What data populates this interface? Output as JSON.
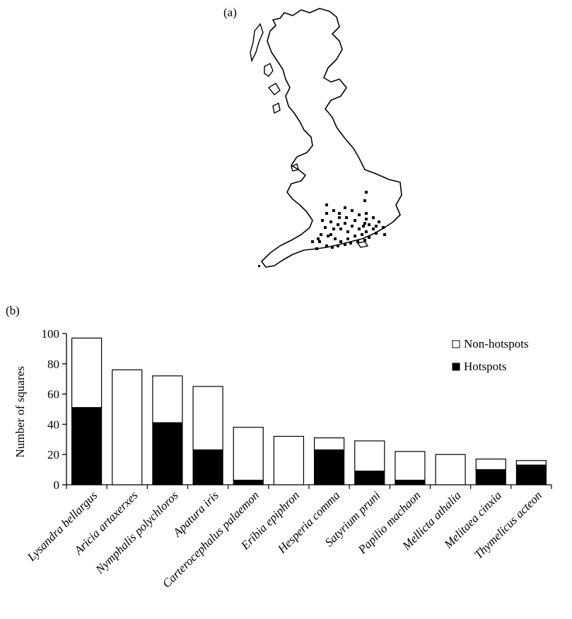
{
  "panels": {
    "a_label": "(a)",
    "b_label": "(b)"
  },
  "map": {
    "outline_color": "#000000",
    "hotspot_color": "#000000"
  },
  "chart_data": {
    "type": "bar",
    "stacked": true,
    "categories": [
      "Lysandra bellargus",
      "Aricia artaxerxes",
      "Nymphalis polychloros",
      "Apatura iris",
      "Carterocephalus palaemon",
      "Eribia epiphron",
      "Hesperia comma",
      "Satyrium pruni",
      "Papilio machaon",
      "Mellicta athalia",
      "Melitaea cinxia",
      "Thymelicus acteon"
    ],
    "series": [
      {
        "name": "Hotspots",
        "color": "#000000",
        "values": [
          51,
          0,
          41,
          23,
          3,
          0,
          23,
          9,
          3,
          0,
          10,
          13
        ]
      },
      {
        "name": "Non-hotspots",
        "color": "#ffffff",
        "values": [
          46,
          76,
          31,
          42,
          35,
          32,
          8,
          20,
          19,
          20,
          7,
          3
        ]
      }
    ],
    "totals": [
      97,
      76,
      72,
      65,
      38,
      32,
      31,
      29,
      22,
      20,
      17,
      16
    ],
    "ylabel": "Number of squares",
    "ylim": [
      0,
      100
    ],
    "yticks": [
      0,
      20,
      40,
      60,
      80,
      100
    ],
    "grid": false,
    "legend_position": "top-right"
  }
}
